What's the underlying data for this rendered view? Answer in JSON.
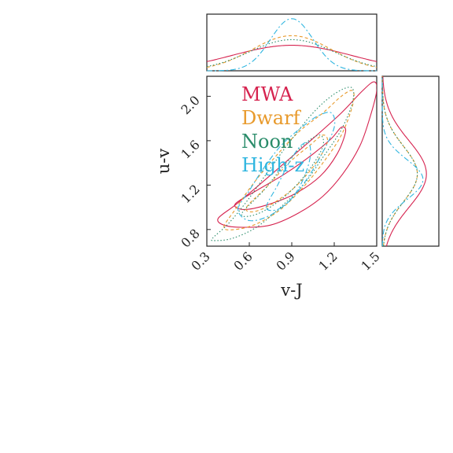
{
  "chart_data": {
    "type": "corner-contour",
    "xlabel": "v-J",
    "ylabel": "u-v",
    "xlim": [
      0.3,
      1.5
    ],
    "ylim": [
      0.65,
      2.18
    ],
    "xticks": [
      "0.3",
      "0.6",
      "0.9",
      "1.2",
      "1.5"
    ],
    "yticks": [
      "0.8",
      "1.2",
      "1.6",
      "2.0"
    ],
    "legend_placement": "top-left inside main panel",
    "series": [
      {
        "name": "MWA",
        "color": "#d6234f",
        "dash": "solid",
        "marginal_x": {
          "mean": 0.9,
          "sd": 0.42,
          "peak": 0.45
        },
        "marginal_y": {
          "mean": 1.3,
          "sd": 0.3,
          "peak": 0.78
        },
        "contours": [
          [
            [
              0.38,
              0.9
            ],
            [
              0.5,
              1.02
            ],
            [
              0.65,
              1.18
            ],
            [
              0.85,
              1.4
            ],
            [
              1.05,
              1.62
            ],
            [
              1.25,
              1.85
            ],
            [
              1.4,
              2.05
            ],
            [
              1.48,
              2.13
            ],
            [
              1.5,
              2.05
            ],
            [
              1.45,
              1.8
            ],
            [
              1.38,
              1.55
            ],
            [
              1.26,
              1.3
            ],
            [
              1.12,
              1.1
            ],
            [
              0.95,
              0.95
            ],
            [
              0.75,
              0.84
            ],
            [
              0.55,
              0.82
            ],
            [
              0.42,
              0.84
            ]
          ],
          [
            [
              0.5,
              1.03
            ],
            [
              0.65,
              1.15
            ],
            [
              0.85,
              1.3
            ],
            [
              1.05,
              1.48
            ],
            [
              1.18,
              1.62
            ],
            [
              1.25,
              1.72
            ],
            [
              1.28,
              1.68
            ],
            [
              1.22,
              1.48
            ],
            [
              1.1,
              1.28
            ],
            [
              0.92,
              1.12
            ],
            [
              0.72,
              1.02
            ],
            [
              0.56,
              0.98
            ]
          ]
        ]
      },
      {
        "name": "Dwarf",
        "color": "#e89a2c",
        "dash": "4 3",
        "marginal_x": {
          "mean": 0.9,
          "sd": 0.28,
          "peak": 0.62
        },
        "marginal_y": {
          "mean": 1.3,
          "sd": 0.25,
          "peak": 0.62
        },
        "contours": [
          [
            [
              0.42,
              0.82
            ],
            [
              0.5,
              0.98
            ],
            [
              0.62,
              1.2
            ],
            [
              0.78,
              1.45
            ],
            [
              0.95,
              1.68
            ],
            [
              1.12,
              1.85
            ],
            [
              1.25,
              2.0
            ],
            [
              1.33,
              2.05
            ],
            [
              1.33,
              1.92
            ],
            [
              1.25,
              1.65
            ],
            [
              1.12,
              1.4
            ],
            [
              0.98,
              1.18
            ],
            [
              0.82,
              0.98
            ],
            [
              0.65,
              0.85
            ],
            [
              0.5,
              0.8
            ]
          ],
          [
            [
              0.58,
              1.0
            ],
            [
              0.72,
              1.18
            ],
            [
              0.88,
              1.4
            ],
            [
              1.02,
              1.55
            ],
            [
              1.12,
              1.65
            ],
            [
              1.15,
              1.58
            ],
            [
              1.06,
              1.38
            ],
            [
              0.92,
              1.18
            ],
            [
              0.76,
              1.03
            ],
            [
              0.63,
              0.96
            ]
          ]
        ]
      },
      {
        "name": "Noon",
        "color": "#2a8c6a",
        "dash": "1.5 2.5",
        "marginal_x": {
          "mean": 0.9,
          "sd": 0.3,
          "peak": 0.55
        },
        "marginal_y": {
          "mean": 1.3,
          "sd": 0.25,
          "peak": 0.62
        },
        "contours": [
          [
            [
              0.34,
              0.72
            ],
            [
              0.45,
              0.85
            ],
            [
              0.58,
              1.05
            ],
            [
              0.72,
              1.3
            ],
            [
              0.88,
              1.58
            ],
            [
              1.05,
              1.85
            ],
            [
              1.2,
              2.02
            ],
            [
              1.32,
              2.08
            ],
            [
              1.33,
              1.95
            ],
            [
              1.25,
              1.7
            ],
            [
              1.12,
              1.45
            ],
            [
              0.98,
              1.2
            ],
            [
              0.82,
              1.0
            ],
            [
              0.65,
              0.82
            ],
            [
              0.48,
              0.72
            ],
            [
              0.36,
              0.7
            ]
          ],
          [
            [
              0.55,
              0.95
            ],
            [
              0.7,
              1.15
            ],
            [
              0.86,
              1.4
            ],
            [
              1.0,
              1.58
            ],
            [
              1.1,
              1.65
            ],
            [
              1.12,
              1.55
            ],
            [
              1.03,
              1.35
            ],
            [
              0.88,
              1.13
            ],
            [
              0.72,
              0.98
            ],
            [
              0.6,
              0.92
            ]
          ]
        ]
      },
      {
        "name": "High-z",
        "color": "#31b6e0",
        "dash": "7 3 2 3",
        "marginal_x": {
          "mean": 0.9,
          "sd": 0.15,
          "peak": 0.92
        },
        "marginal_y": {
          "mean": 1.25,
          "sd": 0.18,
          "peak": 0.72
        },
        "contours": [
          [
            [
              0.52,
              0.98
            ],
            [
              0.6,
              1.15
            ],
            [
              0.7,
              1.35
            ],
            [
              0.82,
              1.55
            ],
            [
              0.95,
              1.7
            ],
            [
              1.08,
              1.82
            ],
            [
              1.18,
              1.85
            ],
            [
              1.2,
              1.72
            ],
            [
              1.12,
              1.5
            ],
            [
              1.02,
              1.28
            ],
            [
              0.9,
              1.08
            ],
            [
              0.75,
              0.93
            ],
            [
              0.6,
              0.88
            ]
          ],
          [
            [
              0.72,
              1.0
            ],
            [
              0.8,
              1.2
            ],
            [
              0.88,
              1.4
            ],
            [
              0.96,
              1.55
            ],
            [
              1.02,
              1.58
            ],
            [
              1.03,
              1.45
            ],
            [
              0.98,
              1.25
            ],
            [
              0.9,
              1.08
            ],
            [
              0.8,
              0.98
            ]
          ]
        ]
      }
    ]
  }
}
